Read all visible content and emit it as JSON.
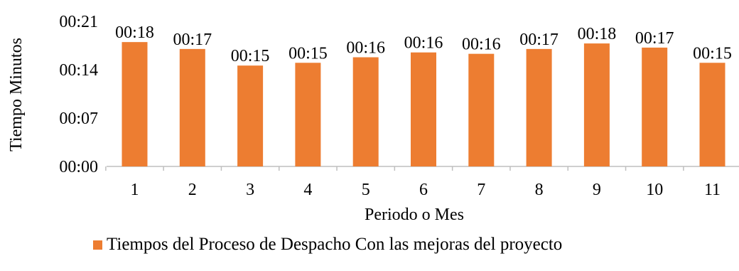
{
  "chart_data": {
    "type": "bar",
    "categories": [
      "1",
      "2",
      "3",
      "4",
      "5",
      "6",
      "7",
      "8",
      "9",
      "10",
      "11"
    ],
    "series": [
      {
        "name": "Tiempos del Proceso de Despacho Con las mejoras del proyecto",
        "values_minutes": [
          18.0,
          17.0,
          14.6,
          15.0,
          15.8,
          16.5,
          16.3,
          17.0,
          17.8,
          17.2,
          15.0
        ],
        "labels": [
          "00:18",
          "00:17",
          "00:15",
          "00:15",
          "00:16",
          "00:16",
          "00:16",
          "00:17",
          "00:18",
          "00:17",
          "00:15"
        ],
        "color": "#ED7D31"
      }
    ],
    "ylabel": "Tiempo Minutos",
    "xlabel": "Periodo o Mes",
    "ylim_minutes": [
      0,
      21
    ],
    "y_ticks": [
      {
        "minutes": 0,
        "label": "00:00"
      },
      {
        "minutes": 7,
        "label": "00:07"
      },
      {
        "minutes": 14,
        "label": "00:14"
      },
      {
        "minutes": 21,
        "label": "00:21"
      }
    ],
    "grid": false,
    "legend_position": "bottom"
  }
}
